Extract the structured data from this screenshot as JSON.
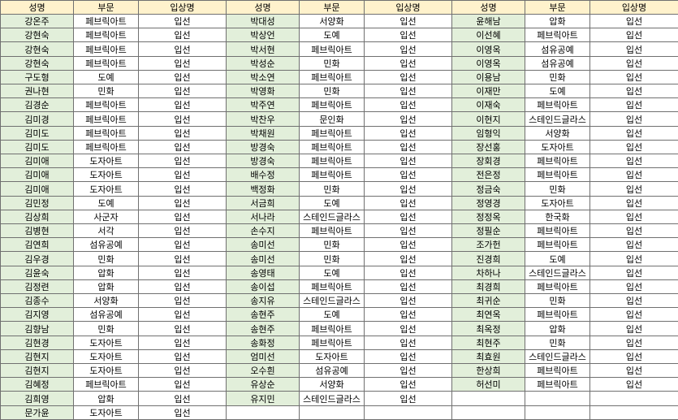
{
  "colors": {
    "header_bg": "#FFF2CC",
    "name_bg": "#E2EFDA",
    "cell_bg": "#FFFFFF",
    "border": "#707070",
    "text": "#000000"
  },
  "table": {
    "header": [
      "성명",
      "부문",
      "입상명"
    ],
    "row_count": 29,
    "groups": [
      {
        "rows": [
          [
            "강온주",
            "페브릭아트",
            "입선"
          ],
          [
            "강현숙",
            "페브릭아트",
            "입선"
          ],
          [
            "강현숙",
            "페브릭아트",
            "입선"
          ],
          [
            "강현숙",
            "페브릭아트",
            "입선"
          ],
          [
            "구도형",
            "도예",
            "입선"
          ],
          [
            "권나현",
            "민화",
            "입선"
          ],
          [
            "김경순",
            "페브릭아트",
            "입선"
          ],
          [
            "김미경",
            "페브릭아트",
            "입선"
          ],
          [
            "김미도",
            "페브릭아트",
            "입선"
          ],
          [
            "김미도",
            "페브릭아트",
            "입선"
          ],
          [
            "김미애",
            "도자아트",
            "입선"
          ],
          [
            "김미애",
            "도자아트",
            "입선"
          ],
          [
            "김미애",
            "도자아트",
            "입선"
          ],
          [
            "김민정",
            "도예",
            "입선"
          ],
          [
            "김상희",
            "사군자",
            "입선"
          ],
          [
            "김병현",
            "서각",
            "입선"
          ],
          [
            "김연희",
            "섬유공예",
            "입선"
          ],
          [
            "김우경",
            "민화",
            "입선"
          ],
          [
            "김윤숙",
            "압화",
            "입선"
          ],
          [
            "김정련",
            "압화",
            "입선"
          ],
          [
            "김종수",
            "서양화",
            "입선"
          ],
          [
            "김지영",
            "섬유공예",
            "입선"
          ],
          [
            "김향남",
            "민화",
            "입선"
          ],
          [
            "김현경",
            "도자아트",
            "입선"
          ],
          [
            "김현지",
            "도자아트",
            "입선"
          ],
          [
            "김현지",
            "도자아트",
            "입선"
          ],
          [
            "김혜정",
            "페브릭아트",
            "입선"
          ],
          [
            "김희영",
            "압화",
            "입선"
          ],
          [
            "문가윤",
            "도자아트",
            "입선"
          ]
        ]
      },
      {
        "rows": [
          [
            "박대성",
            "서양화",
            "입선"
          ],
          [
            "박상언",
            "도예",
            "입선"
          ],
          [
            "박서현",
            "페브릭아트",
            "입선"
          ],
          [
            "박성순",
            "민화",
            "입선"
          ],
          [
            "박소연",
            "페브릭아트",
            "입선"
          ],
          [
            "박영화",
            "민화",
            "입선"
          ],
          [
            "박주연",
            "페브릭아트",
            "입선"
          ],
          [
            "박찬우",
            "문인화",
            "입선"
          ],
          [
            "박채원",
            "페브릭아트",
            "입선"
          ],
          [
            "방경숙",
            "페브릭아트",
            "입선"
          ],
          [
            "방경숙",
            "페브릭아트",
            "입선"
          ],
          [
            "배수정",
            "페브릭아트",
            "입선"
          ],
          [
            "백정화",
            "민화",
            "입선"
          ],
          [
            "서금희",
            "도예",
            "입선"
          ],
          [
            "서나라",
            "스테인드글라스",
            "입선"
          ],
          [
            "손수지",
            "페브릭아트",
            "입선"
          ],
          [
            "송미선",
            "민화",
            "입선"
          ],
          [
            "송미선",
            "민화",
            "입선"
          ],
          [
            "송영태",
            "도예",
            "입선"
          ],
          [
            "송이섭",
            "페브릭아트",
            "입선"
          ],
          [
            "송지유",
            "스테인드글라스",
            "입선"
          ],
          [
            "송현주",
            "도예",
            "입선"
          ],
          [
            "송현주",
            "페브릭아트",
            "입선"
          ],
          [
            "송화정",
            "페브릭아트",
            "입선"
          ],
          [
            "엄미선",
            "도자아트",
            "입선"
          ],
          [
            "오수흰",
            "섬유공예",
            "입선"
          ],
          [
            "유상순",
            "서양화",
            "입선"
          ],
          [
            "유지민",
            "스테인드글라스",
            "입선"
          ],
          [
            "",
            "",
            ""
          ]
        ]
      },
      {
        "rows": [
          [
            "윤해남",
            "압화",
            "입선"
          ],
          [
            "이선혜",
            "페브릭아트",
            "입선"
          ],
          [
            "이영옥",
            "섬유공예",
            "입선"
          ],
          [
            "이영옥",
            "섬유공예",
            "입선"
          ],
          [
            "이용남",
            "민화",
            "입선"
          ],
          [
            "이재만",
            "도예",
            "입선"
          ],
          [
            "이재숙",
            "페브릭아트",
            "입선"
          ],
          [
            "이현지",
            "스테인드글라스",
            "입선"
          ],
          [
            "임형익",
            "서양화",
            "입선"
          ],
          [
            "장선홍",
            "도자아트",
            "입선"
          ],
          [
            "장회경",
            "페브릭아트",
            "입선"
          ],
          [
            "전은정",
            "페브릭아트",
            "입선"
          ],
          [
            "정금숙",
            "민화",
            "입선"
          ],
          [
            "정영경",
            "도자아트",
            "입선"
          ],
          [
            "정정옥",
            "한국화",
            "입선"
          ],
          [
            "정필순",
            "페브릭아트",
            "입선"
          ],
          [
            "조가헌",
            "페브릭아트",
            "입선"
          ],
          [
            "진경희",
            "도예",
            "입선"
          ],
          [
            "차하나",
            "스테인드글라스",
            "입선"
          ],
          [
            "최경희",
            "페브릭아트",
            "입선"
          ],
          [
            "최귀순",
            "민화",
            "입선"
          ],
          [
            "최연옥",
            "페브릭아트",
            "입선"
          ],
          [
            "최옥정",
            "압화",
            "입선"
          ],
          [
            "최현주",
            "민화",
            "입선"
          ],
          [
            "최효원",
            "스테인드글라스",
            "입선"
          ],
          [
            "한상희",
            "페브릭아트",
            "입선"
          ],
          [
            "허선미",
            "페브릭아트",
            "입선"
          ],
          [
            "",
            "",
            ""
          ],
          [
            "",
            "",
            ""
          ]
        ]
      }
    ]
  }
}
